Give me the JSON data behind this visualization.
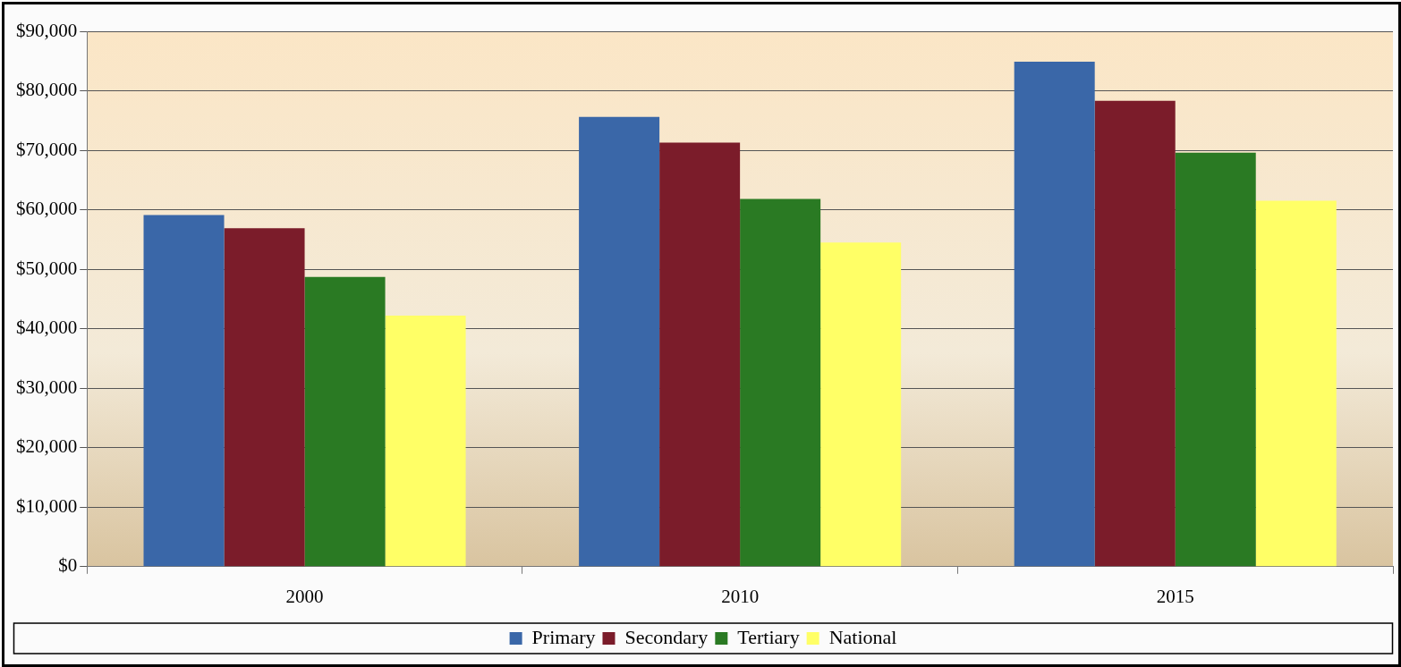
{
  "chart_data": {
    "type": "bar",
    "categories": [
      "2000",
      "2010",
      "2015"
    ],
    "series": [
      {
        "name": "Primary",
        "color": "#3a67a8",
        "values": [
          59100,
          75600,
          84900
        ]
      },
      {
        "name": "Secondary",
        "color": "#7b1c2a",
        "values": [
          56900,
          71300,
          78300
        ]
      },
      {
        "name": "Tertiary",
        "color": "#2a7a23",
        "values": [
          48700,
          61800,
          69600
        ]
      },
      {
        "name": "National",
        "color": "#ffff66",
        "values": [
          42200,
          54500,
          61500
        ]
      }
    ],
    "ylim": [
      0,
      90000
    ],
    "yticks": [
      {
        "value": 0,
        "label": "$0"
      },
      {
        "value": 10000,
        "label": "$10,000"
      },
      {
        "value": 20000,
        "label": "$20,000"
      },
      {
        "value": 30000,
        "label": "$30,000"
      },
      {
        "value": 40000,
        "label": "$40,000"
      },
      {
        "value": 50000,
        "label": "$50,000"
      },
      {
        "value": 60000,
        "label": "$60,000"
      },
      {
        "value": 70000,
        "label": "$70,000"
      },
      {
        "value": 80000,
        "label": "$80,000"
      },
      {
        "value": 90000,
        "label": "$90,000"
      }
    ],
    "grid": "y",
    "legend": "bottom"
  }
}
